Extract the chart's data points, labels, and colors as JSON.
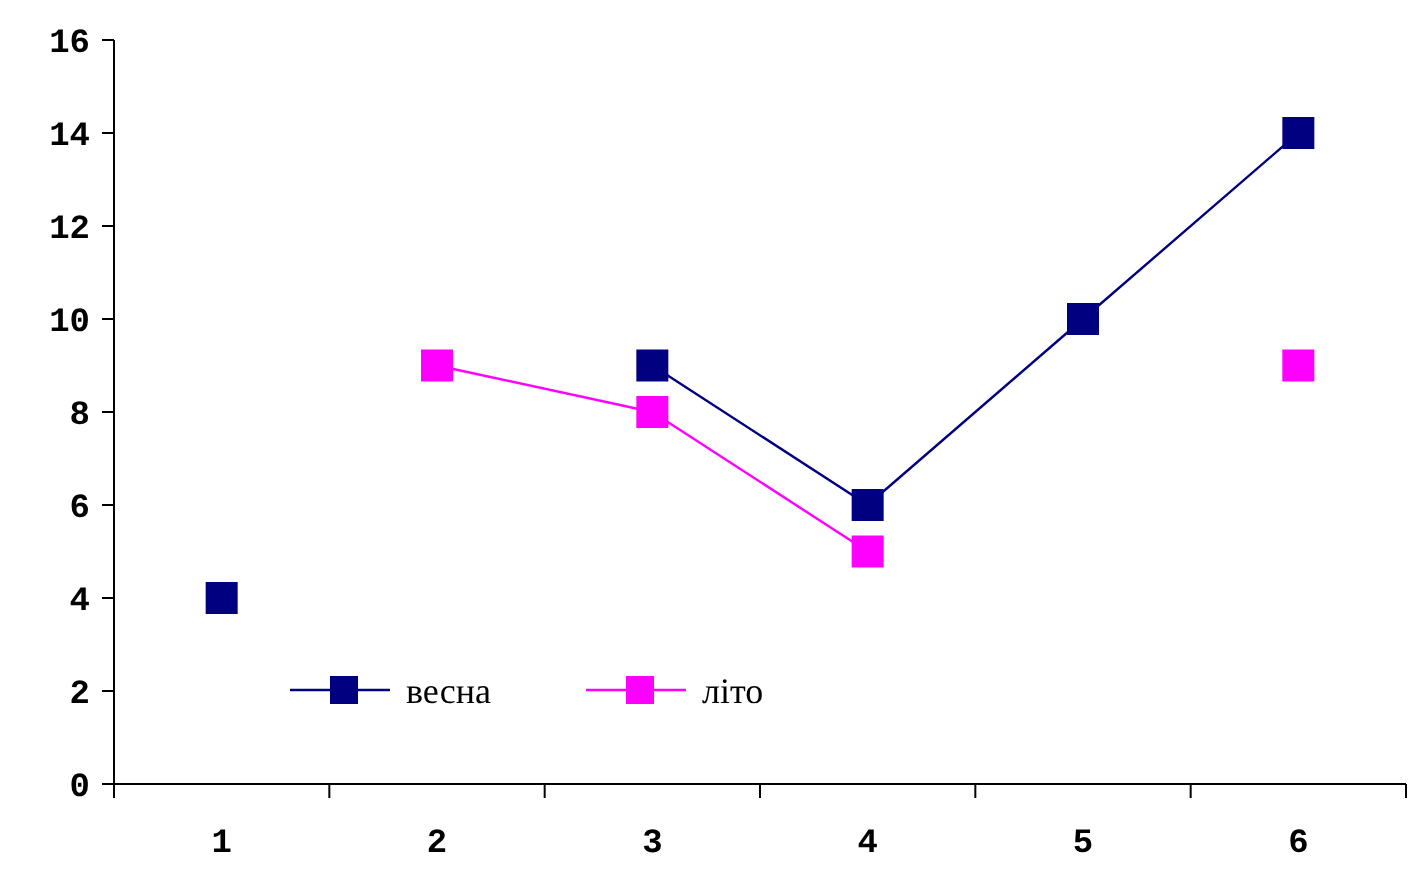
{
  "chart_data": {
    "type": "line",
    "categories": [
      "1",
      "2",
      "3",
      "4",
      "5",
      "6"
    ],
    "series": [
      {
        "name": "весна",
        "color": "#000080",
        "values": [
          4,
          null,
          9,
          6,
          10,
          14
        ]
      },
      {
        "name": "літо",
        "color": "#ff00ff",
        "values": [
          null,
          9,
          8,
          5,
          null,
          9
        ]
      }
    ],
    "ylim": [
      0,
      16
    ],
    "yticks": [
      0,
      2,
      4,
      6,
      8,
      10,
      12,
      14,
      16
    ],
    "grid": false,
    "legend": "bottom left",
    "marker": "square",
    "line_style": "solid"
  }
}
